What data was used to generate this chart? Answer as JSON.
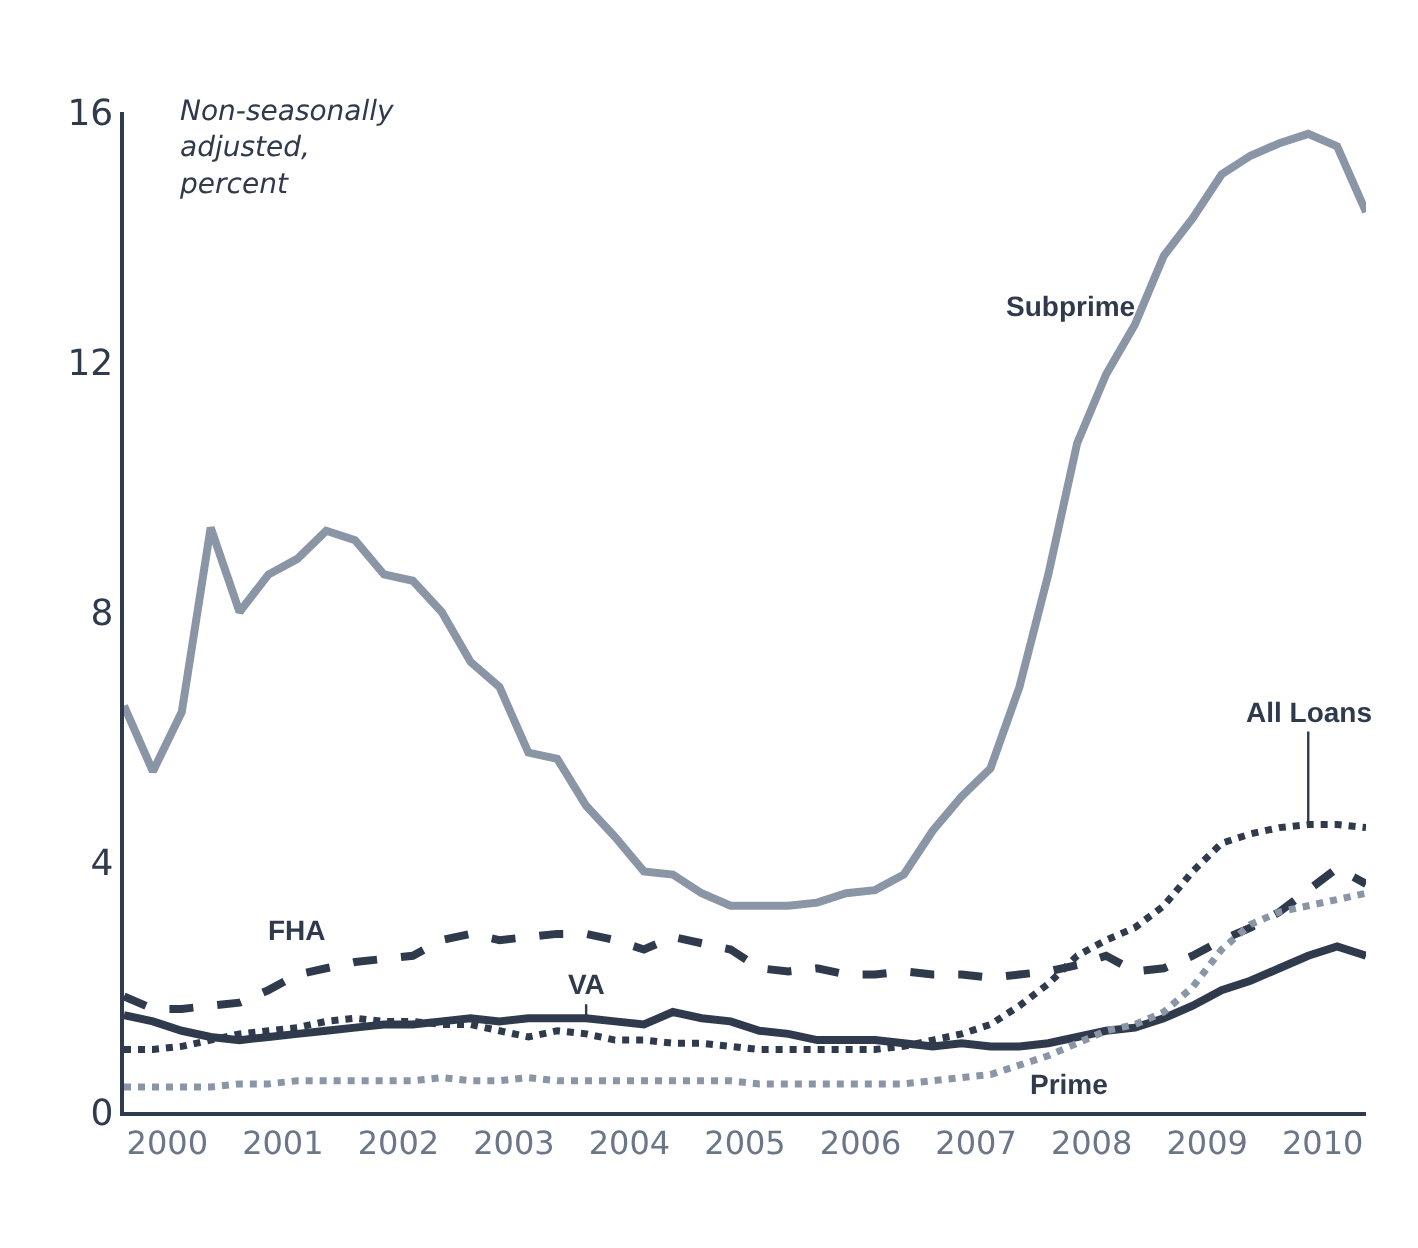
{
  "chart_data": {
    "type": "line",
    "ylim": [
      0,
      16
    ],
    "yticks": [
      0,
      4,
      8,
      12,
      16
    ],
    "xlim": [
      2000,
      2010.75
    ],
    "xticks": [
      {
        "value": 2000.375,
        "label": "2000"
      },
      {
        "value": 2001.375,
        "label": "2001"
      },
      {
        "value": 2002.375,
        "label": "2002"
      },
      {
        "value": 2003.375,
        "label": "2003"
      },
      {
        "value": 2004.375,
        "label": "2004"
      },
      {
        "value": 2005.375,
        "label": "2005"
      },
      {
        "value": 2006.375,
        "label": "2006"
      },
      {
        "value": 2007.375,
        "label": "2007"
      },
      {
        "value": 2008.375,
        "label": "2008"
      },
      {
        "value": 2009.375,
        "label": "2009"
      },
      {
        "value": 2010.375,
        "label": "2010"
      }
    ],
    "x": [
      2000,
      2000.25,
      2000.5,
      2000.75,
      2001,
      2001.25,
      2001.5,
      2001.75,
      2002,
      2002.25,
      2002.5,
      2002.75,
      2003,
      2003.25,
      2003.5,
      2003.75,
      2004,
      2004.25,
      2004.5,
      2004.75,
      2005,
      2005.25,
      2005.5,
      2005.75,
      2006,
      2006.25,
      2006.5,
      2006.75,
      2007,
      2007.25,
      2007.5,
      2007.75,
      2008,
      2008.25,
      2008.5,
      2008.75,
      2009,
      2009.25,
      2009.5,
      2009.75,
      2010,
      2010.25,
      2010.5,
      2010.75
    ],
    "annotations": [
      "Non-seasonally\nadjusted,\npercent"
    ],
    "legend": false,
    "marker": "none",
    "series": [
      {
        "name": "Subprime",
        "color": "#8a96a6",
        "line_style": "solid",
        "values": [
          6.5,
          5.45,
          6.4,
          9.35,
          8.0,
          8.6,
          8.85,
          9.3,
          9.15,
          8.6,
          8.5,
          8.0,
          7.2,
          6.8,
          5.75,
          5.65,
          4.9,
          4.4,
          3.85,
          3.8,
          3.5,
          3.3,
          3.3,
          3.3,
          3.35,
          3.5,
          3.55,
          3.8,
          4.5,
          5.05,
          5.5,
          6.8,
          8.6,
          10.7,
          11.8,
          12.6,
          13.7,
          14.3,
          15.0,
          15.3,
          15.5,
          15.65,
          15.45,
          14.4
        ]
      },
      {
        "name": "FHA",
        "color": "#2f3b4c",
        "line_style": "dashed",
        "values": [
          1.85,
          1.65,
          1.65,
          1.7,
          1.75,
          1.95,
          2.2,
          2.3,
          2.4,
          2.45,
          2.5,
          2.75,
          2.85,
          2.75,
          2.8,
          2.85,
          2.85,
          2.75,
          2.6,
          2.8,
          2.7,
          2.6,
          2.3,
          2.25,
          2.3,
          2.2,
          2.2,
          2.25,
          2.2,
          2.2,
          2.15,
          2.2,
          2.25,
          2.35,
          2.5,
          2.25,
          2.3,
          2.5,
          2.75,
          2.95,
          3.2,
          3.55,
          3.9,
          3.65
        ]
      },
      {
        "name": "VA",
        "color": "#2f3b4c",
        "line_style": "solid",
        "values": [
          1.55,
          1.45,
          1.3,
          1.2,
          1.15,
          1.2,
          1.25,
          1.3,
          1.35,
          1.4,
          1.4,
          1.45,
          1.5,
          1.45,
          1.5,
          1.5,
          1.5,
          1.45,
          1.4,
          1.6,
          1.5,
          1.45,
          1.3,
          1.25,
          1.15,
          1.15,
          1.15,
          1.1,
          1.05,
          1.1,
          1.05,
          1.05,
          1.1,
          1.2,
          1.3,
          1.35,
          1.5,
          1.7,
          1.95,
          2.1,
          2.3,
          2.5,
          2.65,
          2.5
        ]
      },
      {
        "name": "All Loans",
        "color": "#2f3b4c",
        "line_style": "dotted",
        "values": [
          1.0,
          1.0,
          1.05,
          1.15,
          1.25,
          1.3,
          1.35,
          1.45,
          1.5,
          1.45,
          1.45,
          1.4,
          1.4,
          1.3,
          1.2,
          1.3,
          1.25,
          1.15,
          1.15,
          1.1,
          1.1,
          1.05,
          1.0,
          1.0,
          1.0,
          1.0,
          1.0,
          1.05,
          1.15,
          1.25,
          1.4,
          1.7,
          2.05,
          2.5,
          2.75,
          2.95,
          3.3,
          3.85,
          4.3,
          4.45,
          4.55,
          4.6,
          4.6,
          4.55
        ]
      },
      {
        "name": "Prime",
        "color": "#8a96a6",
        "line_style": "dotted",
        "values": [
          0.4,
          0.4,
          0.4,
          0.4,
          0.45,
          0.45,
          0.5,
          0.5,
          0.5,
          0.5,
          0.5,
          0.55,
          0.5,
          0.5,
          0.55,
          0.5,
          0.5,
          0.5,
          0.5,
          0.5,
          0.5,
          0.5,
          0.45,
          0.45,
          0.45,
          0.45,
          0.45,
          0.45,
          0.5,
          0.55,
          0.6,
          0.75,
          0.9,
          1.1,
          1.3,
          1.4,
          1.6,
          2.0,
          2.6,
          3.0,
          3.2,
          3.3,
          3.4,
          3.5
        ]
      }
    ]
  }
}
